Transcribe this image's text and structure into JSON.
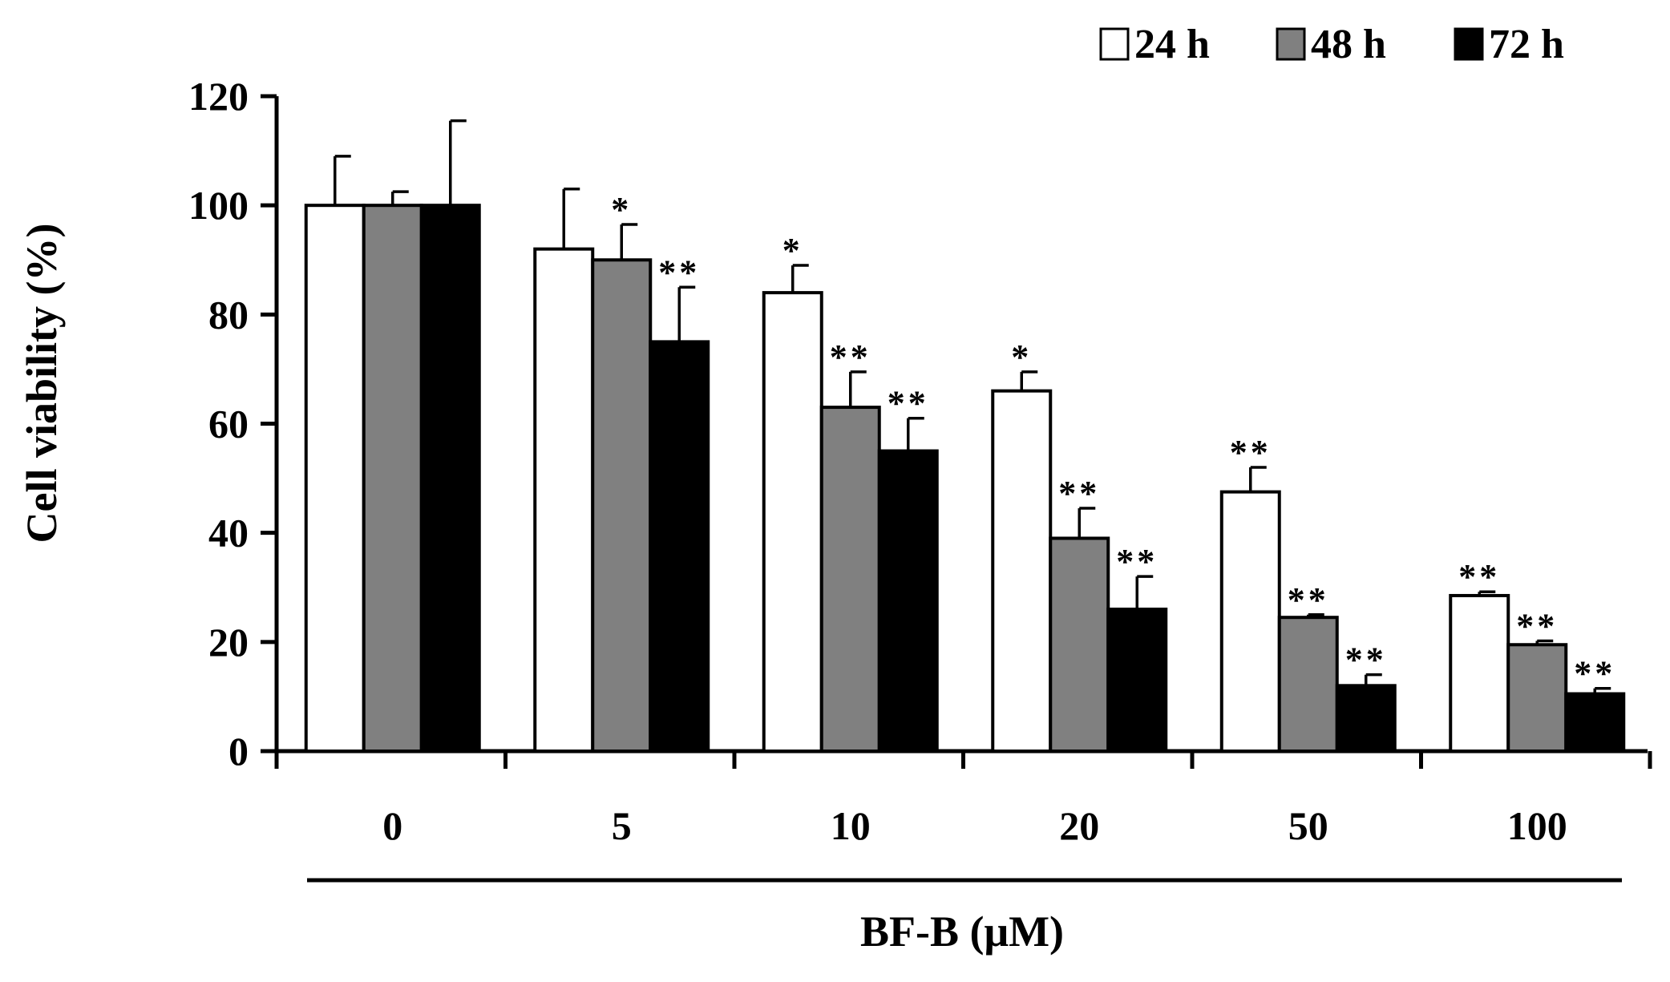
{
  "chart_data": {
    "type": "bar",
    "title": "",
    "xlabel": "BF-B (μM)",
    "ylabel": "Cell viability (%)",
    "ylim": [
      0,
      120
    ],
    "yticks": [
      "0",
      "20",
      "40",
      "60",
      "80",
      "100",
      "120"
    ],
    "categories": [
      "0",
      "5",
      "10",
      "20",
      "50",
      "100"
    ],
    "legend_position": "top-right",
    "series": [
      {
        "name": "24 h",
        "color": "#ffffff",
        "values": [
          100,
          92,
          84,
          66,
          47.5,
          28.5
        ],
        "errors": [
          9,
          11,
          5,
          3.5,
          4.5,
          0.7
        ],
        "significance": [
          "",
          "",
          "*",
          "*",
          "**",
          "**"
        ]
      },
      {
        "name": "48 h",
        "color": "#808080",
        "values": [
          100,
          90,
          63,
          39,
          24.5,
          19.5
        ],
        "errors": [
          2.5,
          6.5,
          6.5,
          5.5,
          0.5,
          0.7
        ],
        "significance": [
          "",
          "*",
          "**",
          "**",
          "**",
          "**"
        ]
      },
      {
        "name": "72 h",
        "color": "#000000",
        "values": [
          100,
          75,
          55,
          26,
          12,
          10.5
        ],
        "errors": [
          15.5,
          10,
          6,
          6,
          2,
          1
        ],
        "significance": [
          "",
          "**",
          "**",
          "**",
          "**",
          "**"
        ]
      }
    ]
  }
}
